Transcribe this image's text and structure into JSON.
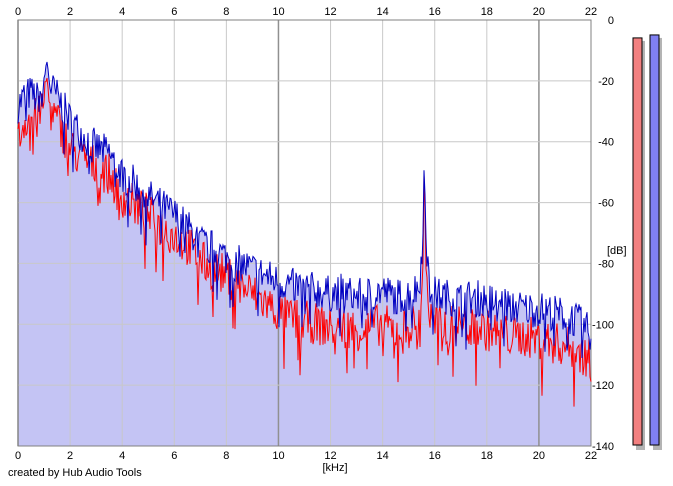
{
  "footer": {
    "credit": "created by Hub Audio Tools"
  },
  "colors": {
    "background": "#ffffff",
    "grid_minor": "#c8c8c8",
    "grid_major": "#909090",
    "fill": "#c4c4f4",
    "red_channel": "#ff0000",
    "blue_channel": "#0000c0",
    "meter_red": "#f28080",
    "meter_blue": "#8080f2",
    "meter_shadow": "#b4b4b4"
  },
  "chart_data": {
    "type": "line",
    "xlabel": "[kHz]",
    "ylabel": "[dB]",
    "xlim": [
      0,
      22
    ],
    "ylim": [
      -140,
      0
    ],
    "x_ticks": [
      0,
      2,
      4,
      6,
      8,
      10,
      12,
      14,
      16,
      18,
      20,
      22
    ],
    "x_tick_labels": [
      "0",
      "2",
      "4",
      "6",
      "8",
      "10",
      "12",
      "14",
      "16",
      "18",
      "20",
      "22"
    ],
    "y_ticks": [
      0,
      -20,
      -40,
      -60,
      -80,
      -100,
      -120,
      -140
    ],
    "y_tick_labels": [
      "0",
      "-20",
      "-40",
      "-60",
      "-80",
      "-100",
      "-120",
      "-140"
    ],
    "grid": true,
    "series": [
      {
        "color": "#0000c0",
        "x": [
          0,
          0.25,
          0.5,
          0.75,
          1.0,
          1.1,
          1.25,
          1.5,
          2,
          2.5,
          3,
          3.5,
          4,
          4.5,
          5,
          5.5,
          6,
          6.5,
          7,
          7.5,
          8,
          8.5,
          9,
          9.5,
          10,
          10.5,
          11,
          11.5,
          12,
          12.5,
          13,
          13.5,
          14,
          14.5,
          15,
          15.4,
          15.55,
          15.6,
          15.65,
          15.8,
          16,
          16.5,
          17,
          17.5,
          18,
          18.5,
          19,
          19.5,
          20,
          20.5,
          21,
          21.5,
          22
        ],
        "values": [
          -28,
          -25,
          -24,
          -26,
          -21,
          -13,
          -22,
          -25,
          -33,
          -38,
          -42,
          -44,
          -51,
          -54,
          -58,
          -61,
          -64,
          -68,
          -73,
          -75,
          -78,
          -80,
          -82,
          -84,
          -86,
          -87,
          -88,
          -89,
          -90,
          -89,
          -91,
          -90,
          -89,
          -91,
          -90,
          -88,
          -70,
          -43,
          -70,
          -87,
          -90,
          -91,
          -92,
          -91,
          -92,
          -93,
          -94,
          -95,
          -95,
          -96,
          -97,
          -99,
          -103
        ]
      },
      {
        "color": "#ff0000",
        "x": [
          0,
          0.25,
          0.5,
          0.75,
          1.0,
          1.1,
          1.25,
          1.5,
          2,
          2.5,
          3,
          3.5,
          4,
          4.5,
          5,
          5.5,
          6,
          6.5,
          7,
          7.5,
          8,
          8.5,
          9,
          9.5,
          10,
          10.5,
          11,
          11.5,
          12,
          12.5,
          13,
          13.5,
          14,
          14.5,
          15,
          15.4,
          15.55,
          15.6,
          15.65,
          15.8,
          16,
          16.5,
          17,
          17.5,
          18,
          18.5,
          19,
          19.5,
          20,
          20.5,
          21,
          21.5,
          22
        ],
        "values": [
          -40,
          -33,
          -31,
          -33,
          -27,
          -18,
          -30,
          -33,
          -42,
          -46,
          -48,
          -51,
          -58,
          -61,
          -64,
          -68,
          -71,
          -74,
          -79,
          -82,
          -84,
          -87,
          -90,
          -93,
          -96,
          -98,
          -99,
          -100,
          -101,
          -100,
          -102,
          -101,
          -100,
          -102,
          -101,
          -99,
          -80,
          -42,
          -80,
          -98,
          -100,
          -101,
          -100,
          -101,
          -102,
          -103,
          -104,
          -104,
          -105,
          -106,
          -107,
          -109,
          -112
        ]
      }
    ],
    "fill_area": true,
    "level_meters": [
      {
        "channel": "left",
        "color": "#f28080",
        "level_db": -3
      },
      {
        "channel": "right",
        "color": "#8080f2",
        "level_db": -2
      }
    ]
  }
}
